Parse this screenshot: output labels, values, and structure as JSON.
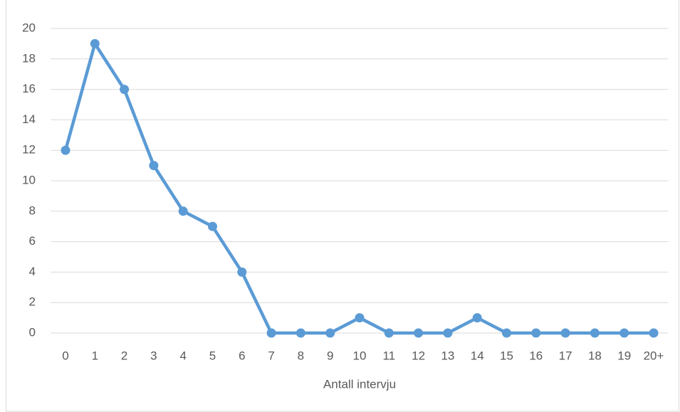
{
  "chart_data": {
    "type": "line",
    "x_label": "Antall intervju",
    "categories": [
      "0",
      "1",
      "2",
      "3",
      "4",
      "5",
      "6",
      "7",
      "8",
      "9",
      "10",
      "11",
      "12",
      "13",
      "14",
      "15",
      "16",
      "17",
      "18",
      "19",
      "20+"
    ],
    "series": [
      {
        "color": "#5b9bd5",
        "values": [
          12,
          19,
          16,
          11,
          8,
          7,
          4,
          0,
          0,
          0,
          1,
          0,
          0,
          0,
          1,
          0,
          0,
          0,
          0,
          0,
          0
        ]
      }
    ],
    "ylim": [
      0,
      20
    ],
    "yticks": [
      0,
      2,
      4,
      6,
      8,
      10,
      12,
      14,
      16,
      18,
      20
    ],
    "grid": true
  }
}
